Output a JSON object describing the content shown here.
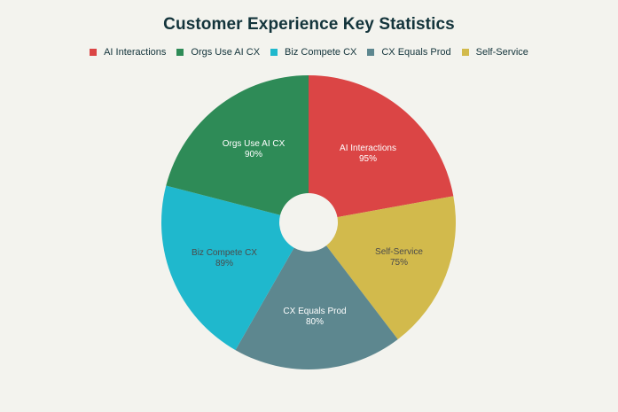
{
  "chart_data": {
    "type": "pie",
    "variant": "donut",
    "title": "Customer Experience Key Statistics",
    "categories": [
      "AI Interactions",
      "Self-Service",
      "CX Equals Prod",
      "Biz Compete CX",
      "Orgs Use AI CX"
    ],
    "values": [
      95,
      75,
      80,
      89,
      90
    ],
    "value_labels": [
      "95%",
      "75%",
      "80%",
      "89%",
      "90%"
    ],
    "colors": [
      "#db4545",
      "#d2ba4c",
      "#5d878f",
      "#1fb8cd",
      "#2e8b57"
    ],
    "label_colors": [
      "#ffffff",
      "#4a4a4a",
      "#ffffff",
      "#4a4a4a",
      "#ffffff"
    ],
    "legend": {
      "position": "top",
      "entries": [
        {
          "label": "AI Interactions",
          "color": "#db4545"
        },
        {
          "label": "Orgs Use AI CX",
          "color": "#2e8b57"
        },
        {
          "label": "Biz Compete CX",
          "color": "#1fb8cd"
        },
        {
          "label": "CX Equals Prod",
          "color": "#5d878f"
        },
        {
          "label": "Self-Service",
          "color": "#d2ba4c"
        }
      ]
    },
    "hole_ratio": 0.2,
    "direction": "clockwise",
    "start_angle_deg": 0
  },
  "labels": [
    {
      "name": "AI Interactions",
      "pct": "95%"
    },
    {
      "name": "Self-Service",
      "pct": "75%"
    },
    {
      "name": "CX Equals Prod",
      "pct": "80%"
    },
    {
      "name": "Biz Compete CX",
      "pct": "89%"
    },
    {
      "name": "Orgs Use AI CX",
      "pct": "90%"
    }
  ]
}
